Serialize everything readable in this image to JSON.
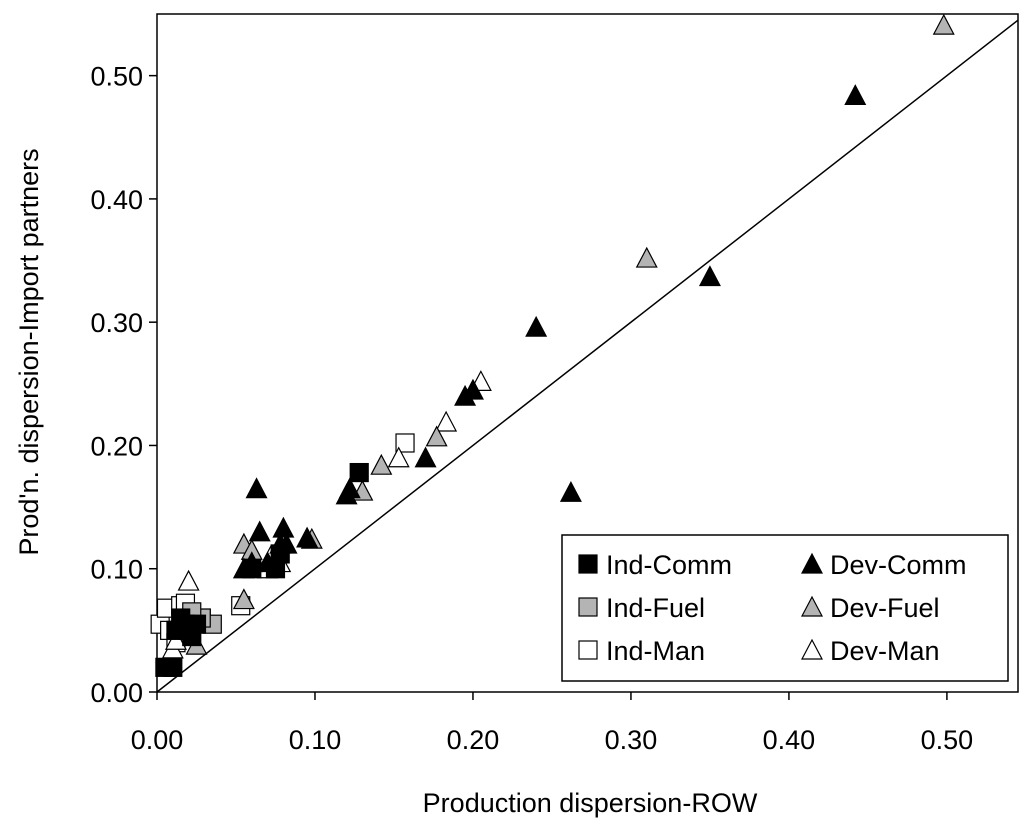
{
  "chart_data": {
    "type": "scatter",
    "title": "",
    "xlabel": "Production dispersion-ROW",
    "ylabel": "Prod'n. dispersion-Import partners",
    "xlim": [
      0,
      0.545
    ],
    "ylim": [
      0,
      0.55
    ],
    "xticks": [
      0.0,
      0.1,
      0.2,
      0.3,
      0.4,
      0.5
    ],
    "yticks": [
      0.0,
      0.1,
      0.2,
      0.3,
      0.4,
      0.5
    ],
    "xtick_labels": [
      "0.00",
      "0.10",
      "0.20",
      "0.30",
      "0.40",
      "0.50"
    ],
    "ytick_labels": [
      "0.00",
      "0.10",
      "0.20",
      "0.30",
      "0.40",
      "0.50"
    ],
    "grid": false,
    "legend_position": "bottom-right",
    "reference_line": {
      "label": "",
      "slope": 1,
      "intercept": 0
    },
    "series": [
      {
        "name": "Ind-Comm",
        "marker": "square",
        "fill": "#000000",
        "stroke": "#000000",
        "points": [
          [
            0.005,
            0.02
          ],
          [
            0.01,
            0.02
          ],
          [
            0.012,
            0.05
          ],
          [
            0.015,
            0.06
          ],
          [
            0.018,
            0.055
          ],
          [
            0.02,
            0.05
          ],
          [
            0.022,
            0.045
          ],
          [
            0.025,
            0.055
          ],
          [
            0.06,
            0.1
          ],
          [
            0.075,
            0.1
          ],
          [
            0.078,
            0.112
          ],
          [
            0.128,
            0.178
          ]
        ]
      },
      {
        "name": "Ind-Fuel",
        "marker": "square",
        "fill": "#b4b4b4",
        "stroke": "#000000",
        "points": [
          [
            0.035,
            0.055
          ],
          [
            0.028,
            0.06
          ],
          [
            0.022,
            0.065
          ]
        ]
      },
      {
        "name": "Ind-Man",
        "marker": "square",
        "fill": "#ffffff",
        "stroke": "#000000",
        "points": [
          [
            0.002,
            0.055
          ],
          [
            0.006,
            0.068
          ],
          [
            0.008,
            0.05
          ],
          [
            0.012,
            0.04
          ],
          [
            0.015,
            0.07
          ],
          [
            0.018,
            0.072
          ],
          [
            0.028,
            0.06
          ],
          [
            0.053,
            0.07
          ],
          [
            0.157,
            0.202
          ]
        ]
      },
      {
        "name": "Dev-Comm",
        "marker": "triangle",
        "fill": "#000000",
        "stroke": "#000000",
        "points": [
          [
            0.055,
            0.1
          ],
          [
            0.06,
            0.105
          ],
          [
            0.063,
            0.165
          ],
          [
            0.065,
            0.13
          ],
          [
            0.07,
            0.105
          ],
          [
            0.078,
            0.12
          ],
          [
            0.08,
            0.133
          ],
          [
            0.082,
            0.12
          ],
          [
            0.095,
            0.125
          ],
          [
            0.12,
            0.16
          ],
          [
            0.122,
            0.165
          ],
          [
            0.17,
            0.19
          ],
          [
            0.195,
            0.24
          ],
          [
            0.2,
            0.245
          ],
          [
            0.24,
            0.296
          ],
          [
            0.262,
            0.162
          ],
          [
            0.35,
            0.337
          ],
          [
            0.442,
            0.484
          ]
        ]
      },
      {
        "name": "Dev-Fuel",
        "marker": "triangle",
        "fill": "#b4b4b4",
        "stroke": "#000000",
        "points": [
          [
            0.025,
            0.038
          ],
          [
            0.055,
            0.075
          ],
          [
            0.055,
            0.12
          ],
          [
            0.06,
            0.115
          ],
          [
            0.098,
            0.124
          ],
          [
            0.13,
            0.163
          ],
          [
            0.142,
            0.184
          ],
          [
            0.177,
            0.207
          ],
          [
            0.31,
            0.352
          ],
          [
            0.498,
            0.541
          ]
        ]
      },
      {
        "name": "Dev-Man",
        "marker": "triangle",
        "fill": "#ffffff",
        "stroke": "#000000",
        "points": [
          [
            0.01,
            0.035
          ],
          [
            0.012,
            0.042
          ],
          [
            0.02,
            0.09
          ],
          [
            0.07,
            0.1
          ],
          [
            0.072,
            0.11
          ],
          [
            0.078,
            0.105
          ],
          [
            0.153,
            0.19
          ],
          [
            0.183,
            0.219
          ],
          [
            0.205,
            0.252
          ]
        ]
      }
    ]
  }
}
